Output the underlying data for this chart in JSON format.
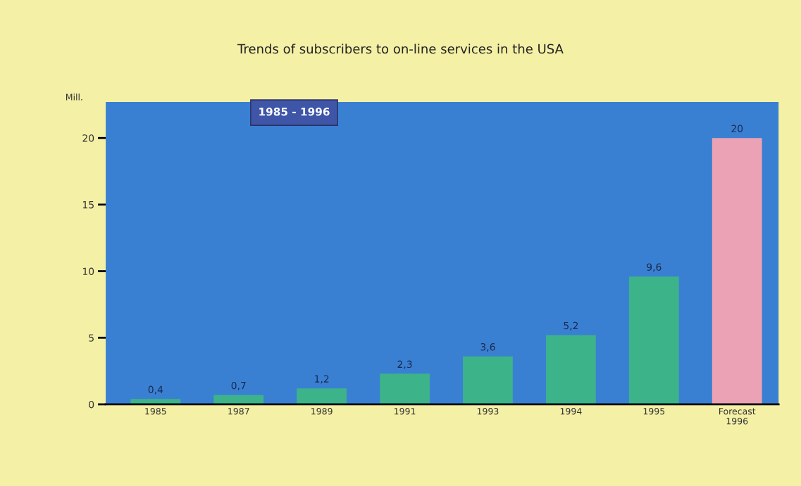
{
  "chart_data": {
    "type": "bar",
    "title": "Trends of subscribers to on-line services in the USA",
    "subtitle": "1985 - 1996",
    "ylabel": "Mill.",
    "categories": [
      "1985",
      "1987",
      "1989",
      "1991",
      "1993",
      "1994",
      "1995",
      "Forecast\n1996"
    ],
    "values": [
      0.4,
      0.7,
      1.2,
      2.3,
      3.6,
      5.2,
      9.6,
      20
    ],
    "value_labels": [
      "0,4",
      "0,7",
      "1,2",
      "2,3",
      "3,6",
      "5,2",
      "9,6",
      "20"
    ],
    "colors": [
      "#3db38a",
      "#3db38a",
      "#3db38a",
      "#3db38a",
      "#3db38a",
      "#3db38a",
      "#3db38a",
      "#eaa2b4"
    ],
    "ylim": [
      0,
      22.7
    ],
    "yticks": [
      0,
      5,
      10,
      15,
      20
    ],
    "grid": false,
    "legend": false
  }
}
